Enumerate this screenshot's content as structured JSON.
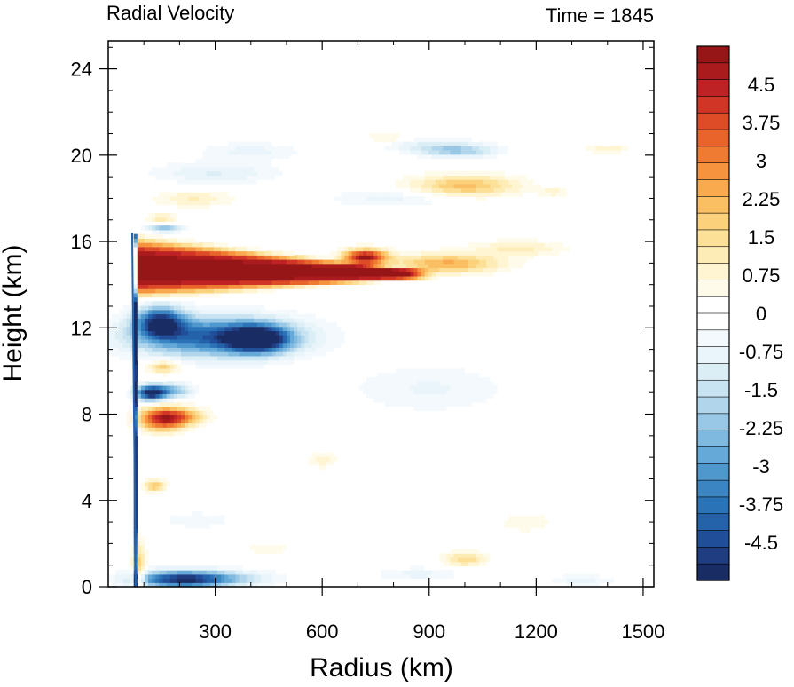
{
  "chart_data": {
    "type": "heatmap",
    "title_left": "Radial Velocity",
    "title_right": "Time = 1845",
    "xlabel": "Radius (km)",
    "ylabel": "Height (km)",
    "xlim": [
      0,
      1530
    ],
    "ylim": [
      0,
      25.3
    ],
    "x_ticks": [
      300,
      600,
      900,
      1200,
      1500
    ],
    "x_tick_labels": [
      "300",
      "600",
      "900",
      "1200",
      "1500"
    ],
    "y_ticks": [
      0,
      4,
      8,
      12,
      16,
      20,
      24
    ],
    "y_tick_labels": [
      "0",
      "4",
      "8",
      "12",
      "16",
      "20",
      "24"
    ],
    "colorbar": {
      "min": -5.25,
      "max": 5.25,
      "step": 0.25,
      "tick_values": [
        4.5,
        3.75,
        3,
        2.25,
        1.5,
        0.75,
        0,
        -0.75,
        -1.5,
        -2.25,
        -3,
        -3.75,
        -4.5
      ],
      "tick_labels": [
        "4.5",
        "3.75",
        "3",
        "2.25",
        "1.5",
        "0.75",
        "0",
        "-0.75",
        "-1.5",
        "-2.25",
        "-3",
        "-3.75",
        "-4.5"
      ]
    },
    "features": [
      {
        "shape": "outflow",
        "r0": 75,
        "r1": 820,
        "z": 14.8,
        "value": 5.2
      },
      {
        "shape": "blob",
        "r": 720,
        "z": 15.3,
        "hw": 60,
        "hh": 0.35,
        "value": 5.0
      },
      {
        "shape": "blob",
        "r": 950,
        "z": 15.0,
        "hw": 150,
        "hh": 0.45,
        "value": 2.4
      },
      {
        "shape": "blob",
        "r": 1150,
        "z": 15.7,
        "hw": 130,
        "hh": 0.35,
        "value": 1.1
      },
      {
        "shape": "blob",
        "r": 300,
        "z": 11.6,
        "hw": 230,
        "hh": 0.9,
        "value": -4.2
      },
      {
        "shape": "blob",
        "r": 420,
        "z": 11.5,
        "hw": 80,
        "hh": 0.6,
        "value": -5.0
      },
      {
        "shape": "blob",
        "r": 145,
        "z": 12.3,
        "hw": 65,
        "hh": 0.7,
        "value": -4.6
      },
      {
        "shape": "blob",
        "r": 160,
        "z": 16.6,
        "hw": 50,
        "hh": 0.15,
        "value": -2.3
      },
      {
        "shape": "blob",
        "r": 155,
        "z": 10.2,
        "hw": 45,
        "hh": 0.3,
        "value": 2.0
      },
      {
        "shape": "blob",
        "r": 118,
        "z": 9.0,
        "hw": 40,
        "hh": 0.35,
        "value": -5.0
      },
      {
        "shape": "blob",
        "r": 175,
        "z": 9.1,
        "hw": 60,
        "hh": 0.35,
        "value": -2.4
      },
      {
        "shape": "blob",
        "r": 150,
        "z": 7.8,
        "hw": 65,
        "hh": 0.55,
        "value": 4.0
      },
      {
        "shape": "blob",
        "r": 210,
        "z": 7.9,
        "hw": 70,
        "hh": 0.4,
        "value": 2.0
      },
      {
        "shape": "blob",
        "r": 130,
        "z": 4.7,
        "hw": 30,
        "hh": 0.3,
        "value": 2.0
      },
      {
        "shape": "blob",
        "r": 200,
        "z": 0.35,
        "hw": 130,
        "hh": 0.4,
        "value": -4.4
      },
      {
        "shape": "blob",
        "r": 320,
        "z": 0.4,
        "hw": 150,
        "hh": 0.35,
        "value": -1.5
      },
      {
        "shape": "blob",
        "r": 980,
        "z": 20.2,
        "hw": 110,
        "hh": 0.3,
        "value": -1.9
      },
      {
        "shape": "blob",
        "r": 900,
        "z": 20.5,
        "hw": 140,
        "hh": 0.3,
        "value": -0.9
      },
      {
        "shape": "blob",
        "r": 1000,
        "z": 18.6,
        "hw": 150,
        "hh": 0.5,
        "value": 2.1
      },
      {
        "shape": "blob",
        "r": 1400,
        "z": 20.3,
        "hw": 60,
        "hh": 0.2,
        "value": 1.0
      },
      {
        "shape": "blob",
        "r": 1250,
        "z": 18.3,
        "hw": 40,
        "hh": 0.2,
        "value": 0.8
      },
      {
        "shape": "blob",
        "r": 300,
        "z": 19.2,
        "hw": 180,
        "hh": 0.5,
        "value": -1.0
      },
      {
        "shape": "blob",
        "r": 240,
        "z": 18.0,
        "hw": 110,
        "hh": 0.4,
        "value": 1.0
      },
      {
        "shape": "blob",
        "r": 800,
        "z": 18.0,
        "hw": 180,
        "hh": 0.4,
        "value": -0.8
      },
      {
        "shape": "blob",
        "r": 400,
        "z": 20.2,
        "hw": 140,
        "hh": 0.4,
        "value": -0.8
      },
      {
        "shape": "blob",
        "r": 780,
        "z": 20.8,
        "hw": 60,
        "hh": 0.25,
        "value": 0.8
      },
      {
        "shape": "blob",
        "r": 150,
        "z": 17.1,
        "hw": 40,
        "hh": 0.2,
        "value": 1.3
      },
      {
        "shape": "blob",
        "r": 900,
        "z": 9.2,
        "hw": 220,
        "hh": 1.1,
        "value": -0.7
      },
      {
        "shape": "blob",
        "r": 1000,
        "z": 1.3,
        "hw": 60,
        "hh": 0.35,
        "value": 1.6
      },
      {
        "shape": "blob",
        "r": 870,
        "z": 0.6,
        "hw": 120,
        "hh": 0.3,
        "value": -0.8
      },
      {
        "shape": "blob",
        "r": 1330,
        "z": 0.3,
        "hw": 90,
        "hh": 0.25,
        "value": -0.8
      },
      {
        "shape": "blob",
        "r": 1170,
        "z": 3.0,
        "hw": 80,
        "hh": 0.5,
        "value": 0.6
      },
      {
        "shape": "blob",
        "r": 250,
        "z": 3.1,
        "hw": 100,
        "hh": 0.4,
        "value": -0.6
      },
      {
        "shape": "blob",
        "r": 600,
        "z": 5.9,
        "hw": 40,
        "hh": 0.4,
        "value": 0.8
      },
      {
        "shape": "blob",
        "r": 450,
        "z": 1.8,
        "hw": 70,
        "hh": 0.3,
        "value": 0.6
      },
      {
        "shape": "eyewall",
        "r": 77,
        "z0": 0.0,
        "z1": 16.4,
        "value": -4.8
      },
      {
        "shape": "blob",
        "r": 85,
        "z": 0.8,
        "hw": 20,
        "hh": 1.3,
        "value": 2.0
      }
    ]
  },
  "colors": {
    "colorbar_palette": [
      "#1a2c64",
      "#1f3d80",
      "#214e99",
      "#2462aa",
      "#2b73b7",
      "#3b86c2",
      "#4f98ce",
      "#65a9d8",
      "#7fb9e0",
      "#98c8e6",
      "#b1d6ec",
      "#c8e3f1",
      "#dbeef6",
      "#e9f5fa",
      "#f3f9fc",
      "#ffffff",
      "#ffffff",
      "#fffbeb",
      "#fff5d2",
      "#fdecb6",
      "#fde098",
      "#fcd17c",
      "#fbbf63",
      "#f9aa4e",
      "#f5933f",
      "#ef7b33",
      "#e8642b",
      "#dd4b27",
      "#d03526",
      "#bf2224",
      "#aa1b1e",
      "#961618"
    ]
  }
}
